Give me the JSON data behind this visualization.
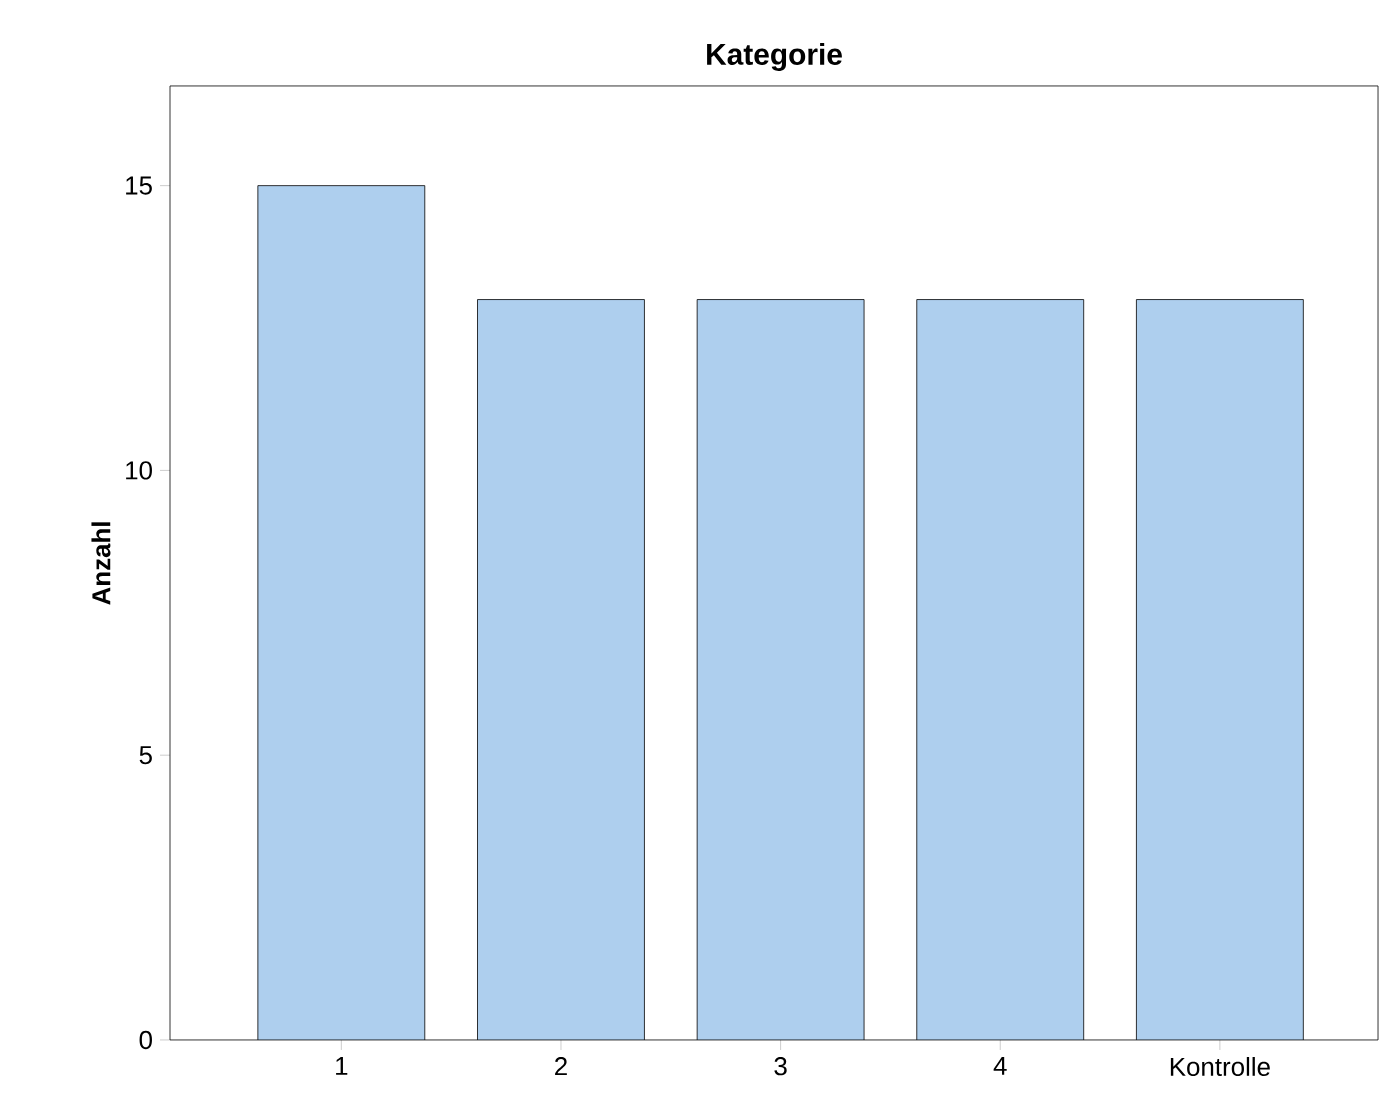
{
  "chart_data": {
    "type": "bar",
    "title": "Kategorie",
    "ylabel": "Anzahl",
    "categories": [
      "1",
      "2",
      "3",
      "4",
      "Kontrolle"
    ],
    "values": [
      15,
      13,
      13,
      13,
      13
    ],
    "color": "#aecfee",
    "ylim": [
      0,
      16.75
    ],
    "yticks": [
      0,
      5,
      10,
      15
    ],
    "grid": false
  }
}
